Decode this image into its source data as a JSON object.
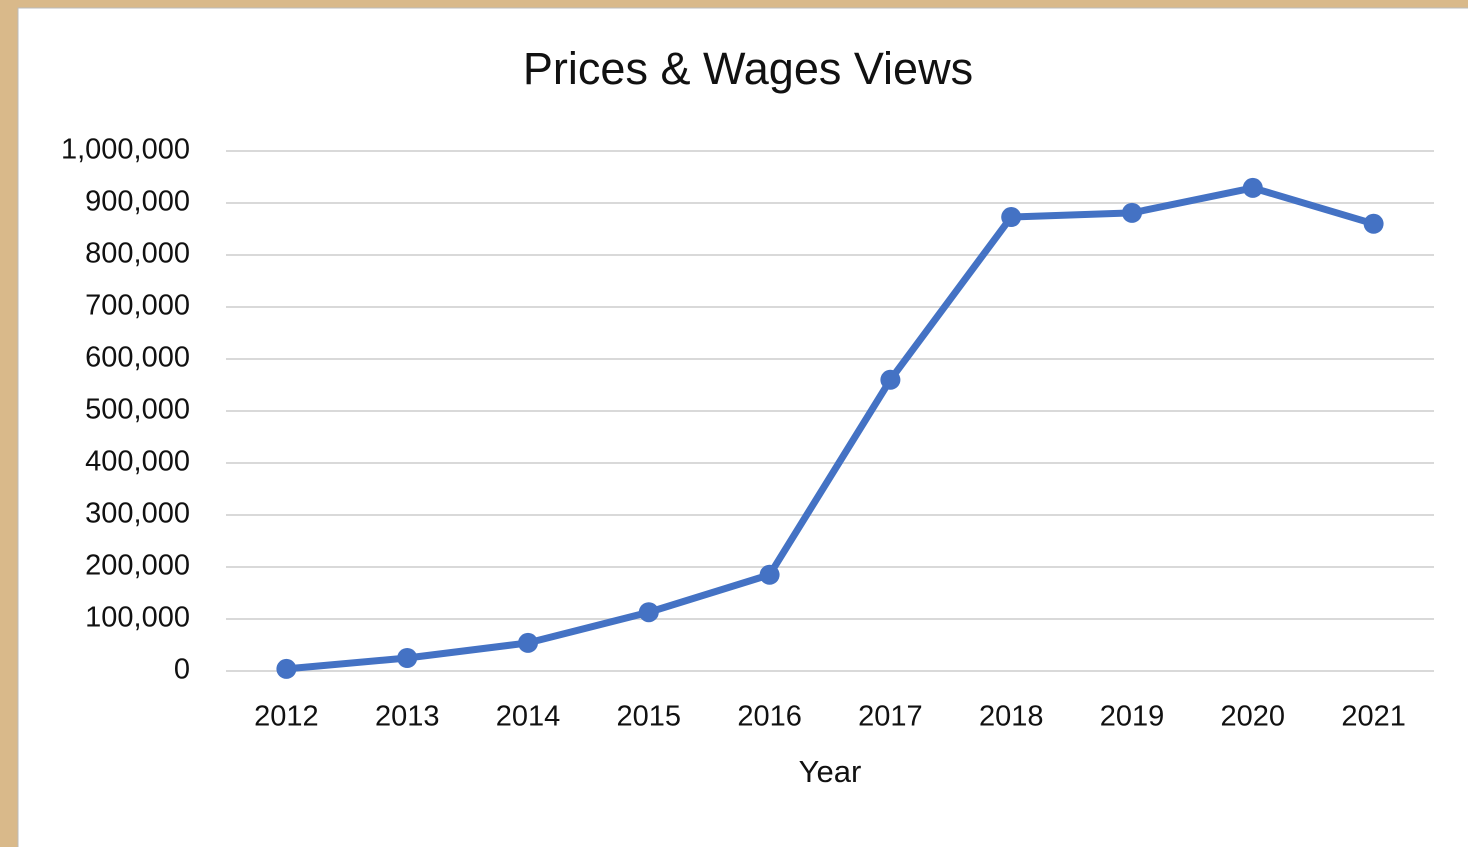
{
  "chart_data": {
    "type": "line",
    "title": "Prices & Wages Views",
    "x_label": "Year",
    "categories": [
      "2012",
      "2013",
      "2014",
      "2015",
      "2016",
      "2017",
      "2018",
      "2019",
      "2020",
      "2021"
    ],
    "series": [
      {
        "name": "Views",
        "color": "#4472c4",
        "values": [
          4000,
          25000,
          54000,
          113000,
          185000,
          560000,
          873000,
          881000,
          929000,
          860000
        ]
      }
    ],
    "ylim": [
      0,
      1000000
    ],
    "yticks": [
      0,
      {
        "value": 100000,
        "label": "100,000"
      },
      {
        "value": 200000,
        "label": "200,000"
      },
      {
        "value": 300000,
        "label": "300,000"
      },
      {
        "value": 400000,
        "label": "400,000"
      },
      {
        "value": 500000,
        "label": "500,000"
      },
      {
        "value": 600000,
        "label": "600,000"
      },
      {
        "value": 700000,
        "label": "700,000"
      },
      {
        "value": 800000,
        "label": "800,000"
      },
      {
        "value": 900000,
        "label": "900,000"
      },
      {
        "value": 1000000,
        "label": "1,000,000"
      }
    ],
    "grid": true
  }
}
